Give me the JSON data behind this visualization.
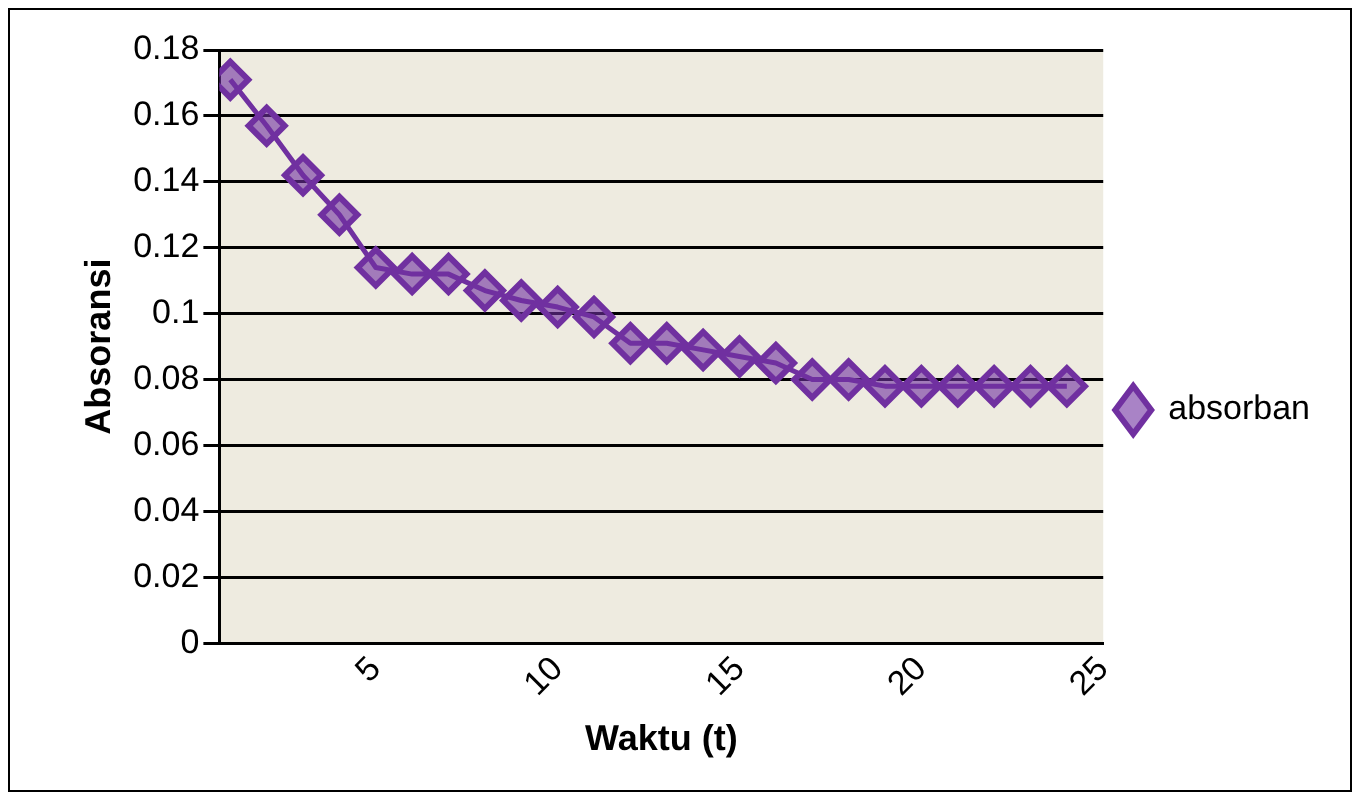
{
  "chart_data": {
    "type": "line",
    "xlabel": "Waktu (t)",
    "ylabel": "Absoransi",
    "x": [
      1,
      2,
      3,
      4,
      5,
      6,
      7,
      8,
      9,
      10,
      11,
      12,
      13,
      14,
      15,
      16,
      17,
      18,
      19,
      20,
      21,
      22,
      23,
      24
    ],
    "series": [
      {
        "name": "absorban",
        "color": "#7030a0",
        "values": [
          0.171,
          0.157,
          0.142,
          0.13,
          0.114,
          0.112,
          0.112,
          0.107,
          0.104,
          0.102,
          0.099,
          0.091,
          0.091,
          0.089,
          0.087,
          0.085,
          0.08,
          0.08,
          0.078,
          0.078,
          0.078,
          0.078,
          0.078,
          0.078
        ]
      }
    ],
    "xlim": [
      0.7,
      25
    ],
    "xticks": [
      5,
      10,
      15,
      20,
      25
    ],
    "ylim": [
      0,
      0.18
    ],
    "yticks": [
      0,
      0.02,
      0.04,
      0.06,
      0.08,
      0.1,
      0.12,
      0.14,
      0.16,
      0.18
    ],
    "grid": "y",
    "legend": "right",
    "marker": "diamond",
    "line_style": "solid"
  }
}
